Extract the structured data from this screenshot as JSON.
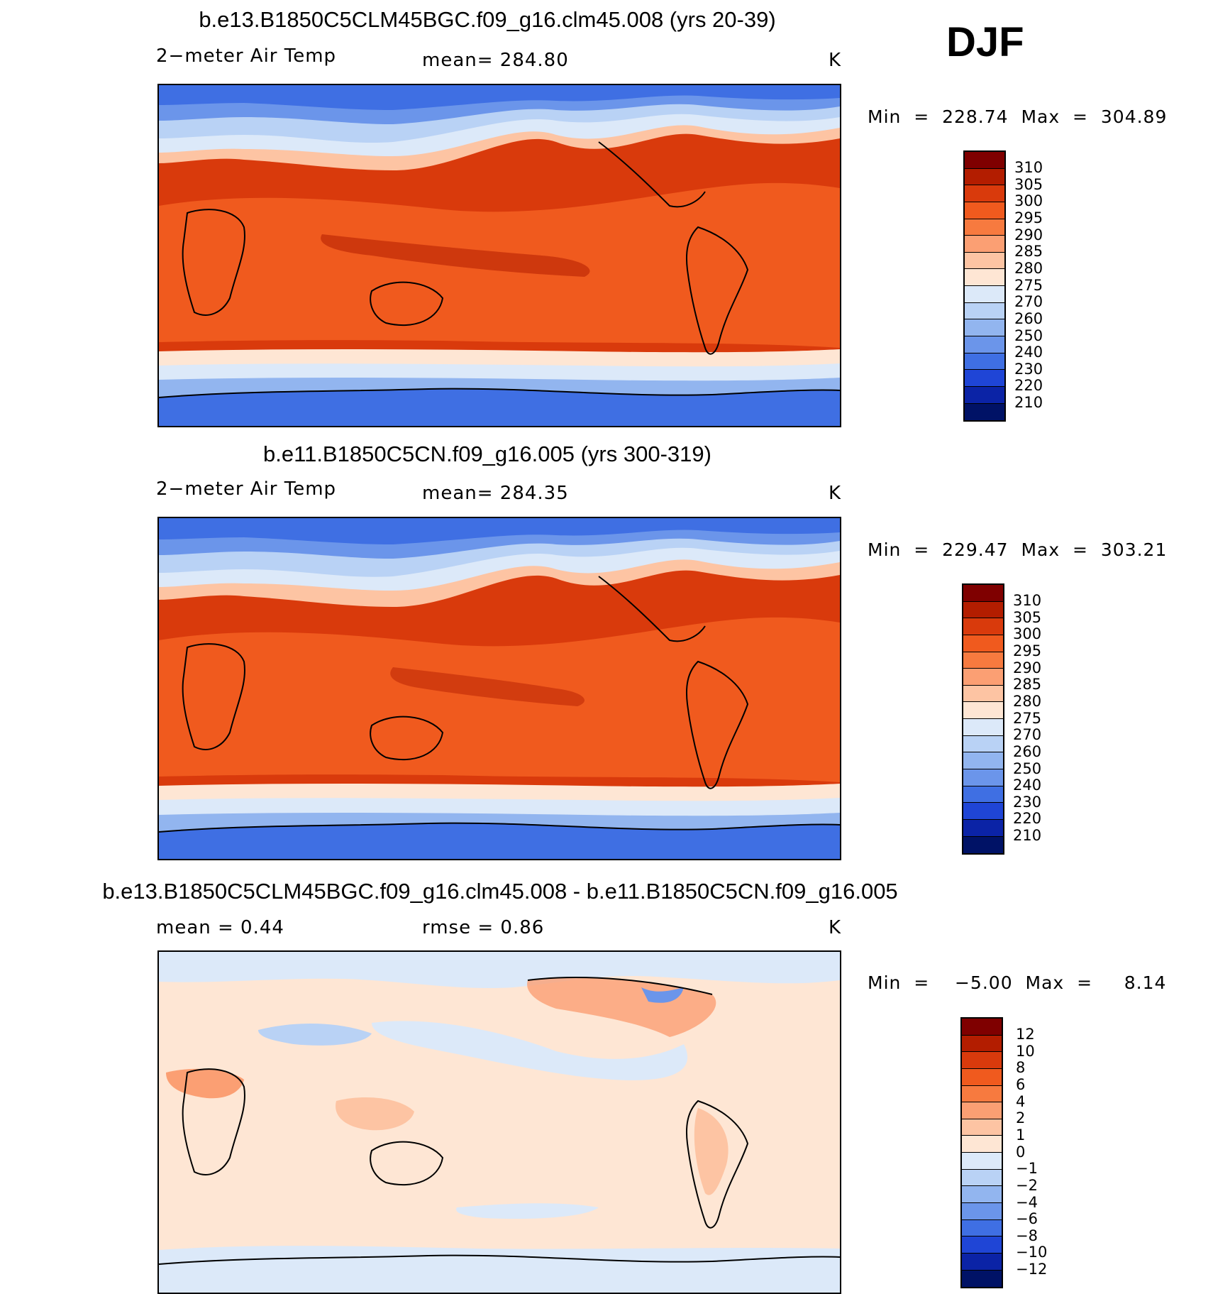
{
  "season": "DJF",
  "panels": [
    {
      "title": "b.e13.B1850C5CLM45BGC.f09_g16.clm45.008 (yrs 20-39)",
      "left_label": "2−meter Air Temp",
      "center_label": "mean= 284.80",
      "units": "K",
      "minmax": "Min  =  228.74  Max  =  304.89",
      "kind": "abs",
      "colorbar_labels": [
        "310",
        "305",
        "300",
        "295",
        "290",
        "285",
        "280",
        "275",
        "270",
        "260",
        "250",
        "240",
        "230",
        "220",
        "210"
      ]
    },
    {
      "title": "b.e11.B1850C5CN.f09_g16.005 (yrs 300-319)",
      "left_label": "2−meter Air Temp",
      "center_label": "mean= 284.35",
      "units": "K",
      "minmax": "Min  =  229.47  Max  =  303.21",
      "kind": "abs",
      "colorbar_labels": [
        "310",
        "305",
        "300",
        "295",
        "290",
        "285",
        "280",
        "275",
        "270",
        "260",
        "250",
        "240",
        "230",
        "220",
        "210"
      ]
    },
    {
      "title": "b.e13.B1850C5CLM45BGC.f09_g16.clm45.008 - b.e11.B1850C5CN.f09_g16.005",
      "left_label": "mean =     0.44",
      "center_label": "rmse =     0.86",
      "units": "K",
      "minmax": "Min  =    −5.00  Max  =     8.14",
      "kind": "diff",
      "colorbar_labels": [
        "12",
        "10",
        "8",
        "6",
        "4",
        "2",
        "1",
        "0",
        "−1",
        "−2",
        "−4",
        "−6",
        "−8",
        "−10",
        "−12"
      ]
    }
  ],
  "colors": {
    "abs_scale": [
      "#7f0000",
      "#b31d00",
      "#d93a0c",
      "#f05a1e",
      "#f77a3f",
      "#fb9f73",
      "#fdc4a3",
      "#fee6d4",
      "#dce9f9",
      "#b9d2f5",
      "#92b5ef",
      "#6b95ea",
      "#3f6fe3",
      "#1f45d6",
      "#0b23a6",
      "#001266"
    ],
    "diff_scale": [
      "#7f0000",
      "#b31d00",
      "#d93a0c",
      "#f05a1e",
      "#f77a3f",
      "#fb9f73",
      "#fdc4a3",
      "#fee6d4",
      "#dce9f9",
      "#b9d2f5",
      "#92b5ef",
      "#6b95ea",
      "#3f6fe3",
      "#1f45d6",
      "#0b23a6",
      "#001266"
    ]
  }
}
